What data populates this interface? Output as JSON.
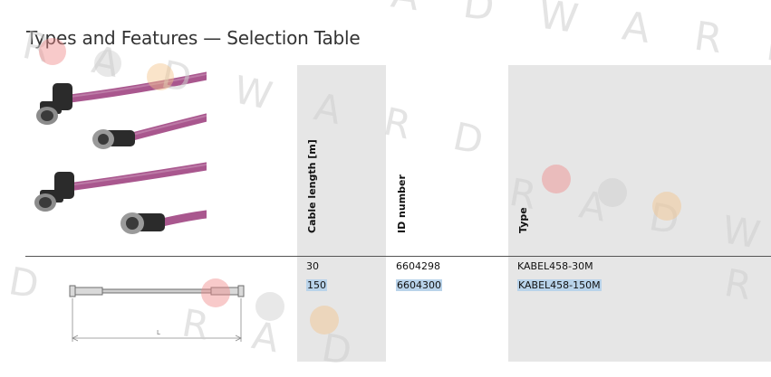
{
  "page": {
    "title": "Types and Features — Selection Table"
  },
  "table": {
    "headers": [
      "Cable length [m]",
      "ID number",
      "Type"
    ],
    "rows": [
      {
        "length": "30",
        "id": "6604298",
        "type": "KABEL458-30M",
        "selected": false
      },
      {
        "length": "150",
        "id": "6604300",
        "type": "KABEL458-150M",
        "selected": true
      }
    ]
  },
  "colors": {
    "cable": "#a9578e",
    "band": "#e6e6e6",
    "selection": "#b9d3ea",
    "connector": "#2b2b2b"
  },
  "icons": [
    "cable-assembly-photo",
    "cable-dimension-drawing"
  ]
}
